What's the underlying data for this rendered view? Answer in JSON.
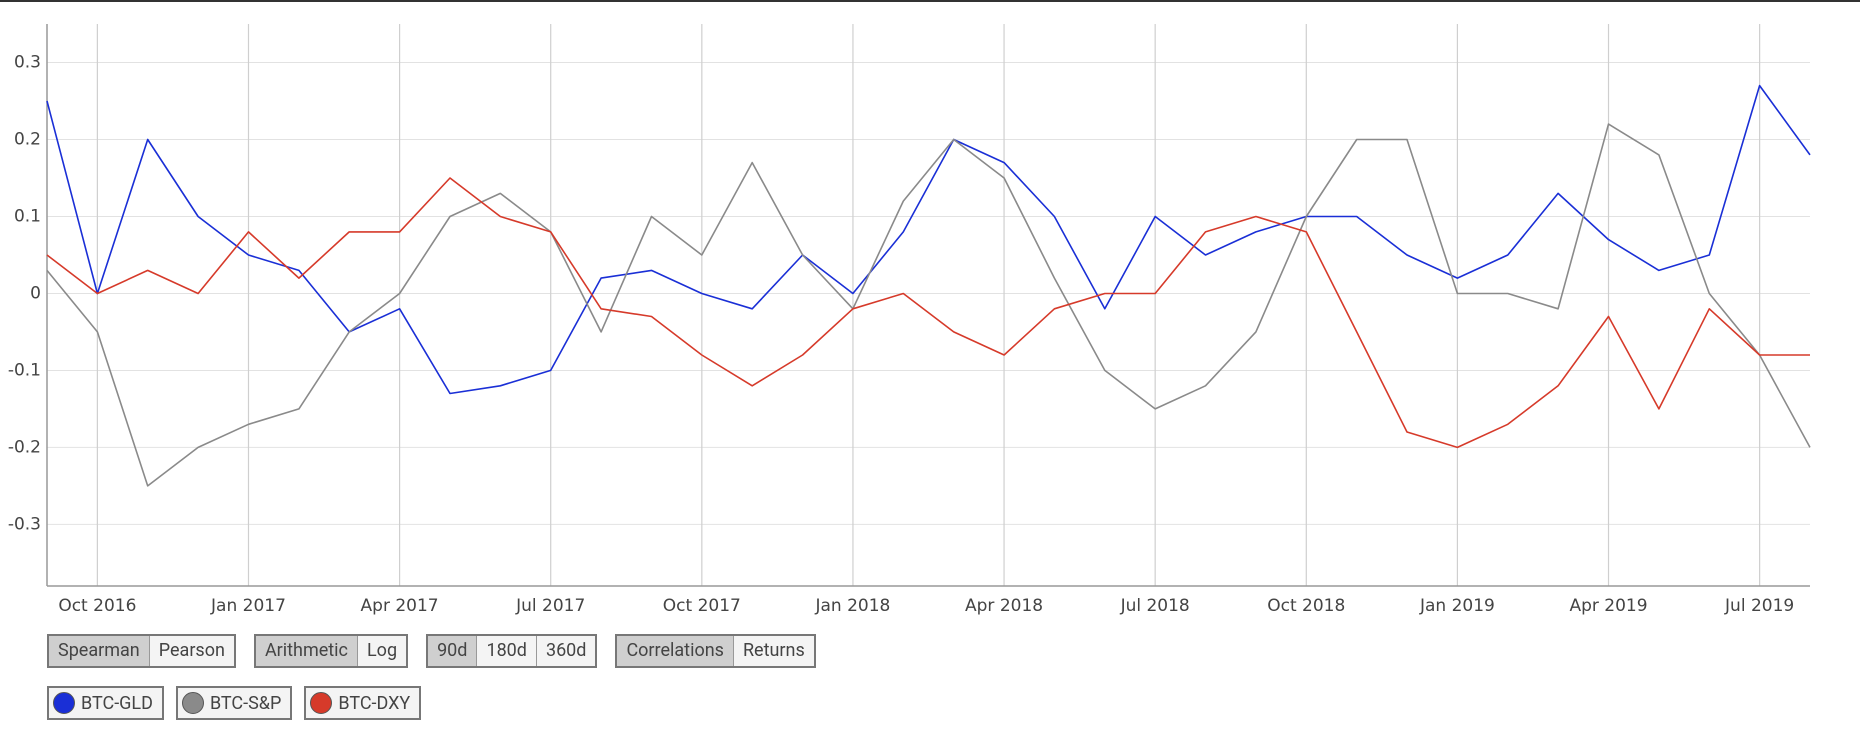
{
  "chart_data": {
    "type": "line",
    "x": [
      "2016-09",
      "2016-10",
      "2016-11",
      "2016-12",
      "2017-01",
      "2017-02",
      "2017-03",
      "2017-04",
      "2017-05",
      "2017-06",
      "2017-07",
      "2017-08",
      "2017-09",
      "2017-10",
      "2017-11",
      "2017-12",
      "2018-01",
      "2018-02",
      "2018-03",
      "2018-04",
      "2018-05",
      "2018-06",
      "2018-07",
      "2018-08",
      "2018-09",
      "2018-10",
      "2018-11",
      "2018-12",
      "2019-01",
      "2019-02",
      "2019-03",
      "2019-04",
      "2019-05",
      "2019-06",
      "2019-07",
      "2019-08"
    ],
    "series": [
      {
        "name": "BTC-GLD",
        "color": "#1a2fd6",
        "values": [
          0.25,
          0,
          0.2,
          0.1,
          0.05,
          0.03,
          -0.05,
          -0.02,
          -0.13,
          -0.12,
          -0.1,
          0.02,
          0.03,
          0,
          -0.02,
          0.05,
          0,
          0.08,
          0.2,
          0.17,
          0.1,
          -0.02,
          0.1,
          0.05,
          0.08,
          0.1,
          0.1,
          0.05,
          0.02,
          0.05,
          0.13,
          0.07,
          0.03,
          0.05,
          0.27,
          0.18
        ]
      },
      {
        "name": "BTC-S&P",
        "color": "#8a8a8a",
        "values": [
          0.03,
          -0.05,
          -0.25,
          -0.2,
          -0.17,
          -0.15,
          -0.05,
          0,
          0.1,
          0.13,
          0.08,
          -0.05,
          0.1,
          0.05,
          0.17,
          0.05,
          -0.02,
          0.12,
          0.2,
          0.15,
          0.02,
          -0.1,
          -0.15,
          -0.12,
          -0.05,
          0.1,
          0.2,
          0.2,
          0,
          0,
          -0.02,
          0.22,
          0.18,
          0,
          -0.08,
          -0.2
        ]
      },
      {
        "name": "BTC-DXY",
        "color": "#d63a2a",
        "values": [
          0.05,
          0,
          0.03,
          0,
          0.08,
          0.02,
          0.08,
          0.08,
          0.15,
          0.1,
          0.08,
          -0.02,
          -0.03,
          -0.08,
          -0.12,
          -0.08,
          -0.02,
          0,
          -0.05,
          -0.08,
          -0.02,
          0,
          0,
          0.08,
          0.1,
          0.08,
          -0.05,
          -0.18,
          -0.2,
          -0.17,
          -0.12,
          -0.03,
          -0.15,
          -0.02,
          -0.08,
          -0.08
        ]
      }
    ],
    "xlim": [
      "2016-09",
      "2019-08"
    ],
    "xticks": [
      {
        "value": "2016-10",
        "label": "Oct 2016"
      },
      {
        "value": "2017-01",
        "label": "Jan 2017"
      },
      {
        "value": "2017-04",
        "label": "Apr 2017"
      },
      {
        "value": "2017-07",
        "label": "Jul 2017"
      },
      {
        "value": "2017-10",
        "label": "Oct 2017"
      },
      {
        "value": "2018-01",
        "label": "Jan 2018"
      },
      {
        "value": "2018-04",
        "label": "Apr 2018"
      },
      {
        "value": "2018-07",
        "label": "Jul 2018"
      },
      {
        "value": "2018-10",
        "label": "Oct 2018"
      },
      {
        "value": "2019-01",
        "label": "Jan 2019"
      },
      {
        "value": "2019-04",
        "label": "Apr 2019"
      },
      {
        "value": "2019-07",
        "label": "Jul 2019"
      }
    ],
    "ylim": [
      -0.38,
      0.35
    ],
    "yticks": [
      -0.3,
      -0.2,
      -0.1,
      0,
      0.1,
      0.2,
      0.3
    ],
    "grid": true
  },
  "controls": [
    {
      "options": [
        "Spearman",
        "Pearson"
      ],
      "selected": 0
    },
    {
      "options": [
        "Arithmetic",
        "Log"
      ],
      "selected": 0
    },
    {
      "options": [
        "90d",
        "180d",
        "360d"
      ],
      "selected": 0
    },
    {
      "options": [
        "Correlations",
        "Returns"
      ],
      "selected": 0
    }
  ]
}
